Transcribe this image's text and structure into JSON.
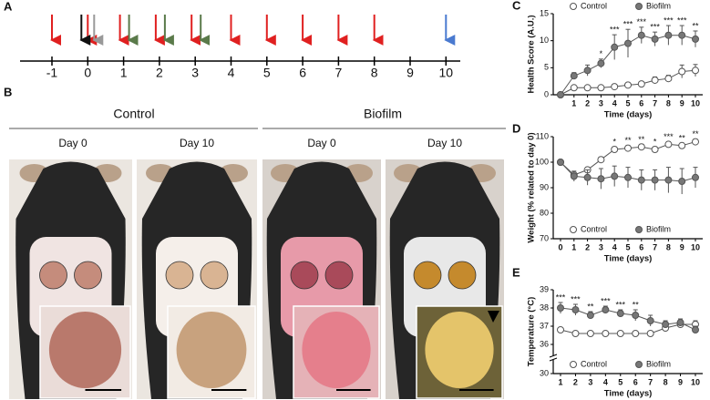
{
  "panels": [
    "A",
    "B",
    "C",
    "D",
    "E"
  ],
  "timeline": {
    "labels": [
      "-1",
      "0",
      "1",
      "2",
      "3",
      "4",
      "5",
      "6",
      "7",
      "8",
      "9",
      "10"
    ]
  },
  "photos": {
    "groups": [
      "Control",
      "Biofilm"
    ],
    "days": [
      "Day 0",
      "Day 10",
      "Day 0",
      "Day 10"
    ]
  },
  "chart_data": [
    {
      "type": "line",
      "y_label": "Health Score (A.U.)",
      "x_label": "Time (days)",
      "xlim": [
        0,
        10
      ],
      "xticks": [
        1,
        2,
        3,
        4,
        5,
        6,
        7,
        8,
        9,
        10
      ],
      "ylim": [
        0,
        15
      ],
      "yticks": [
        0,
        5,
        10,
        15
      ],
      "legend": "top",
      "series": [
        {
          "name": "Control",
          "color": "#ffffff",
          "values": [
            0,
            1.3,
            1.3,
            1.3,
            1.5,
            1.8,
            2,
            2.7,
            3,
            4.3,
            4.5
          ],
          "errors": [
            0,
            0.3,
            0.3,
            0.3,
            0.3,
            0.4,
            0.4,
            0.6,
            0.6,
            1.2,
            1.1
          ]
        },
        {
          "name": "Biofilm",
          "color": "#777777",
          "values": [
            0,
            3.5,
            4.5,
            5.8,
            8.8,
            9.5,
            11,
            10.3,
            11,
            11,
            10.3
          ],
          "errors": [
            0,
            0.6,
            1,
            0.8,
            2.3,
            2.6,
            1.5,
            1.3,
            1.8,
            1.8,
            1.5
          ]
        }
      ],
      "x": [
        0,
        1,
        2,
        3,
        4,
        5,
        6,
        7,
        8,
        9,
        10
      ],
      "significance": {
        "x": [
          3,
          4,
          5,
          6,
          7,
          8,
          9,
          10
        ],
        "labels": [
          "*",
          "***",
          "***",
          "***",
          "***",
          "***",
          "***",
          "**"
        ]
      }
    },
    {
      "type": "line",
      "y_label": "Weight (% related to day 0)",
      "x_label": "Time (days)",
      "xlim": [
        0,
        10
      ],
      "xticks": [
        0,
        1,
        2,
        3,
        4,
        5,
        6,
        7,
        8,
        9,
        10
      ],
      "ylim": [
        70,
        110
      ],
      "yticks": [
        70,
        80,
        90,
        100,
        110
      ],
      "legend": "bottom",
      "series": [
        {
          "name": "Control",
          "color": "#ffffff",
          "values": [
            100,
            95,
            97,
            101,
            105,
            105.5,
            106,
            105,
            107,
            106.5,
            108
          ],
          "errors": [
            0,
            1,
            1,
            1,
            1,
            1,
            1,
            1,
            1,
            1,
            1
          ]
        },
        {
          "name": "Biofilm",
          "color": "#777777",
          "values": [
            100,
            94.5,
            94,
            93.5,
            94.5,
            94,
            93,
            93,
            93,
            92.5,
            94
          ],
          "errors": [
            0,
            2,
            3,
            4,
            4,
            4,
            4,
            4,
            5,
            5,
            4
          ]
        }
      ],
      "x": [
        0,
        1,
        2,
        3,
        4,
        5,
        6,
        7,
        8,
        9,
        10
      ],
      "significance": {
        "x": [
          4,
          5,
          6,
          7,
          8,
          9,
          10
        ],
        "labels": [
          "*",
          "**",
          "**",
          "*",
          "***",
          "**",
          "**"
        ]
      }
    },
    {
      "type": "line",
      "y_label": "Temperature (°C)",
      "x_label": "Time (days)",
      "xlim": [
        1,
        10
      ],
      "xticks": [
        1,
        2,
        3,
        4,
        5,
        6,
        7,
        8,
        9,
        10
      ],
      "ylim": [
        30,
        39
      ],
      "ybreak": [
        31,
        35.5
      ],
      "yticks": [
        30,
        36,
        37,
        38,
        39
      ],
      "legend": "bottom",
      "series": [
        {
          "name": "Control",
          "color": "#ffffff",
          "values": [
            36.8,
            36.6,
            36.6,
            36.6,
            36.6,
            36.6,
            36.6,
            36.9,
            37.1,
            37.1
          ],
          "errors": [
            0.1,
            0.1,
            0.1,
            0.1,
            0.1,
            0.1,
            0.1,
            0.2,
            0.2,
            0.2
          ]
        },
        {
          "name": "Biofilm",
          "color": "#777777",
          "values": [
            38,
            37.9,
            37.6,
            37.9,
            37.7,
            37.6,
            37.3,
            37.1,
            37.2,
            36.8
          ],
          "errors": [
            0.3,
            0.3,
            0.2,
            0.2,
            0.2,
            0.3,
            0.3,
            0.2,
            0.2,
            0.2
          ]
        }
      ],
      "x": [
        1,
        2,
        3,
        4,
        5,
        6,
        7,
        8,
        9,
        10
      ],
      "significance": {
        "x": [
          1,
          2,
          3,
          4,
          5,
          6
        ],
        "labels": [
          "***",
          "***",
          "**",
          "***",
          "***",
          "**"
        ]
      }
    }
  ]
}
